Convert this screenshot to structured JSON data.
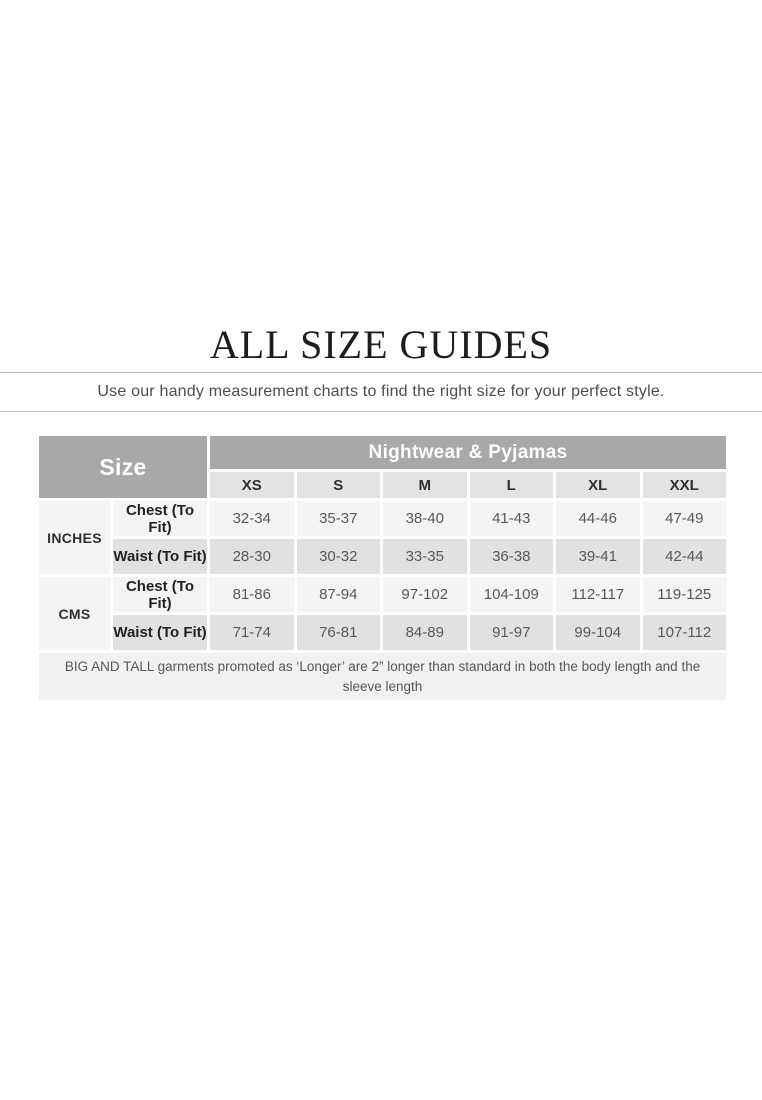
{
  "page": {
    "title": "ALL SIZE GUIDES",
    "subtitle": "Use our handy measurement charts to find the right size for your perfect style."
  },
  "size_table": {
    "corner_label": "Size",
    "category_header": "Nightwear & Pyjamas",
    "size_columns": [
      "XS",
      "S",
      "M",
      "L",
      "XL",
      "XXL"
    ],
    "unit_groups": [
      {
        "unit": "INCHES",
        "rows": [
          {
            "label": "Chest (To Fit)",
            "values": [
              "32-34",
              "35-37",
              "38-40",
              "41-43",
              "44-46",
              "47-49"
            ]
          },
          {
            "label": "Waist (To Fit)",
            "values": [
              "28-30",
              "30-32",
              "33-35",
              "36-38",
              "39-41",
              "42-44"
            ]
          }
        ]
      },
      {
        "unit": "CMS",
        "rows": [
          {
            "label": "Chest (To Fit)",
            "values": [
              "81-86",
              "87-94",
              "97-102",
              "104-109",
              "112-117",
              "119-125"
            ]
          },
          {
            "label": "Waist (To Fit)",
            "values": [
              "71-74",
              "76-81",
              "84-89",
              "91-97",
              "99-104",
              "107-112"
            ]
          }
        ]
      }
    ],
    "footnote": "BIG AND TALL garments promoted as ‘Longer’ are 2” longer than standard in both the body length and the sleeve length"
  },
  "colors": {
    "header_bg": "#a8a8a8",
    "header_text": "#ffffff",
    "subheader_bg": "#e3e3e3",
    "row_light_bg": "#f4f4f4",
    "row_dark_bg": "#e1e1e1",
    "footnote_bg": "#f1f1f1",
    "divider": "#b5b5b5"
  }
}
